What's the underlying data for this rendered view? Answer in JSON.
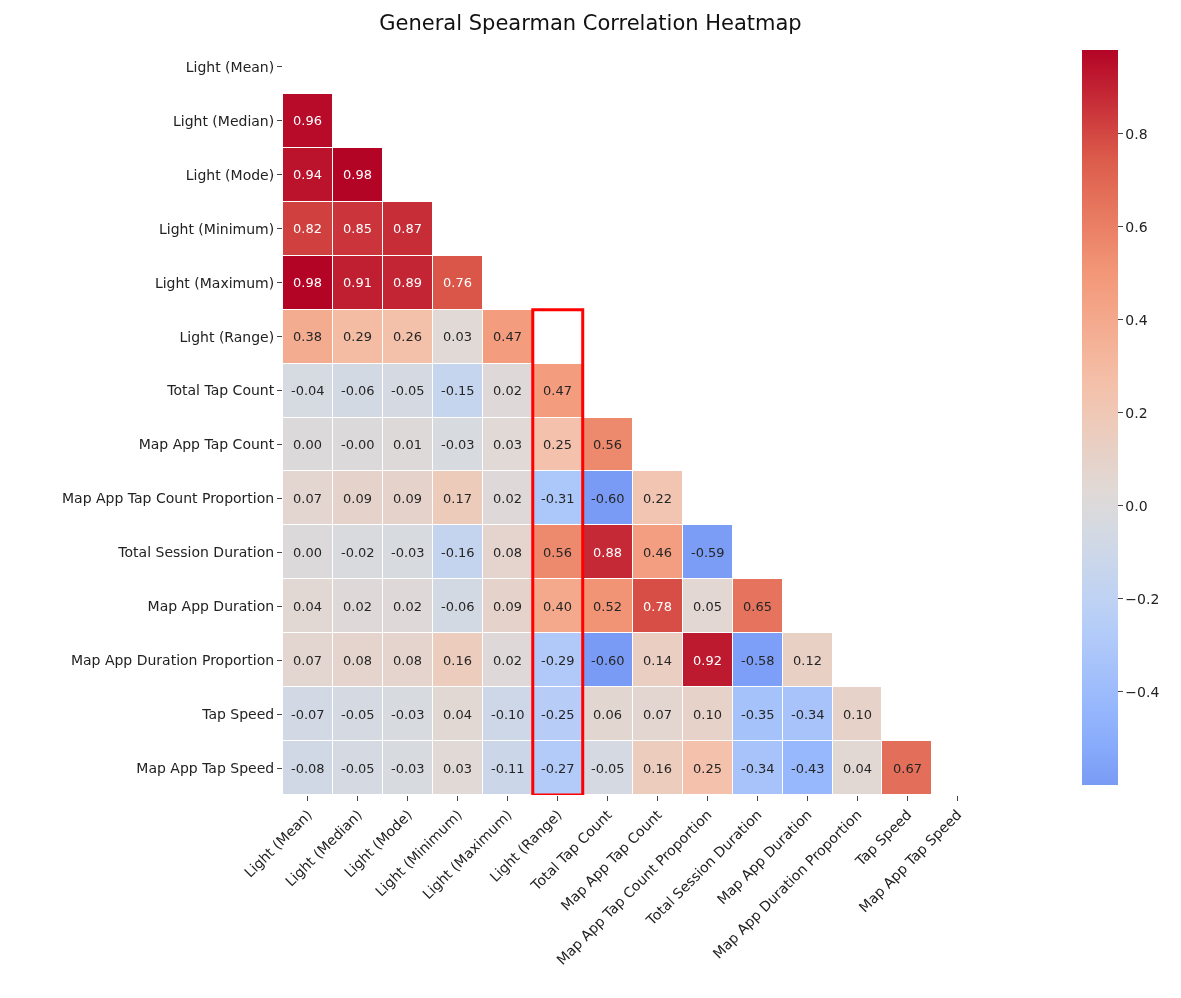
{
  "chart_data": {
    "type": "heatmap",
    "title": "General Spearman Correlation Heatmap",
    "categories": [
      "Light (Mean)",
      "Light (Median)",
      "Light (Mode)",
      "Light (Minimum)",
      "Light (Maximum)",
      "Light (Range)",
      "Total Tap Count",
      "Map App Tap Count",
      "Map App Tap Count Proportion",
      "Total Session Duration",
      "Map App Duration",
      "Map App Duration Proportion",
      "Tap Speed",
      "Map App Tap Speed"
    ],
    "y_categories": [
      "Light (Mean)",
      "Light (Median)",
      "Light (Mode)",
      "Light (Minimum)",
      "Light (Maximum)",
      "Light (Range)",
      "Total Tap Count",
      "Map App Tap Count",
      "Map App Tap Count Proportion",
      "Total Session Duration",
      "Map App Duration",
      "Map App Duration Proportion",
      "Tap Speed",
      "Map App Tap Speed"
    ],
    "cells": [
      [
        null,
        null,
        null,
        null,
        null,
        null,
        null,
        null,
        null,
        null,
        null,
        null,
        null,
        null
      ],
      [
        0.96,
        null,
        null,
        null,
        null,
        null,
        null,
        null,
        null,
        null,
        null,
        null,
        null,
        null
      ],
      [
        0.94,
        0.98,
        null,
        null,
        null,
        null,
        null,
        null,
        null,
        null,
        null,
        null,
        null,
        null
      ],
      [
        0.82,
        0.85,
        0.87,
        null,
        null,
        null,
        null,
        null,
        null,
        null,
        null,
        null,
        null,
        null
      ],
      [
        0.98,
        0.91,
        0.89,
        0.76,
        null,
        null,
        null,
        null,
        null,
        null,
        null,
        null,
        null,
        null
      ],
      [
        0.38,
        0.29,
        0.26,
        0.03,
        0.47,
        null,
        null,
        null,
        null,
        null,
        null,
        null,
        null,
        null
      ],
      [
        -0.04,
        -0.06,
        -0.05,
        -0.15,
        0.02,
        0.47,
        null,
        null,
        null,
        null,
        null,
        null,
        null,
        null
      ],
      [
        0.0,
        -0.0,
        0.01,
        -0.03,
        0.03,
        0.25,
        0.56,
        null,
        null,
        null,
        null,
        null,
        null,
        null
      ],
      [
        0.07,
        0.09,
        0.09,
        0.17,
        0.02,
        -0.31,
        -0.6,
        0.22,
        null,
        null,
        null,
        null,
        null,
        null
      ],
      [
        0.0,
        -0.02,
        -0.03,
        -0.16,
        0.08,
        0.56,
        0.88,
        0.46,
        -0.59,
        null,
        null,
        null,
        null,
        null
      ],
      [
        0.04,
        0.02,
        0.02,
        -0.06,
        0.09,
        0.4,
        0.52,
        0.78,
        0.05,
        0.65,
        null,
        null,
        null,
        null
      ],
      [
        0.07,
        0.08,
        0.08,
        0.16,
        0.02,
        -0.29,
        -0.6,
        0.14,
        0.92,
        -0.58,
        0.12,
        null,
        null,
        null
      ],
      [
        -0.07,
        -0.05,
        -0.03,
        0.04,
        -0.1,
        -0.25,
        0.06,
        0.07,
        0.1,
        -0.35,
        -0.34,
        0.1,
        null,
        null
      ],
      [
        -0.08,
        -0.05,
        -0.03,
        0.03,
        -0.11,
        -0.27,
        -0.05,
        0.16,
        0.25,
        -0.34,
        -0.43,
        0.04,
        0.67,
        null
      ]
    ],
    "cell_labels": [
      [
        null,
        null,
        null,
        null,
        null,
        null,
        null,
        null,
        null,
        null,
        null,
        null,
        null,
        null
      ],
      [
        "0.96",
        null,
        null,
        null,
        null,
        null,
        null,
        null,
        null,
        null,
        null,
        null,
        null,
        null
      ],
      [
        "0.94",
        "0.98",
        null,
        null,
        null,
        null,
        null,
        null,
        null,
        null,
        null,
        null,
        null,
        null
      ],
      [
        "0.82",
        "0.85",
        "0.87",
        null,
        null,
        null,
        null,
        null,
        null,
        null,
        null,
        null,
        null,
        null
      ],
      [
        "0.98",
        "0.91",
        "0.89",
        "0.76",
        null,
        null,
        null,
        null,
        null,
        null,
        null,
        null,
        null,
        null
      ],
      [
        "0.38",
        "0.29",
        "0.26",
        "0.03",
        "0.47",
        null,
        null,
        null,
        null,
        null,
        null,
        null,
        null,
        null
      ],
      [
        "-0.04",
        "-0.06",
        "-0.05",
        "-0.15",
        "0.02",
        "0.47",
        null,
        null,
        null,
        null,
        null,
        null,
        null,
        null
      ],
      [
        "0.00",
        "-0.00",
        "0.01",
        "-0.03",
        "0.03",
        "0.25",
        "0.56",
        null,
        null,
        null,
        null,
        null,
        null,
        null
      ],
      [
        "0.07",
        "0.09",
        "0.09",
        "0.17",
        "0.02",
        "-0.31",
        "-0.60",
        "0.22",
        null,
        null,
        null,
        null,
        null,
        null
      ],
      [
        "0.00",
        "-0.02",
        "-0.03",
        "-0.16",
        "0.08",
        "0.56",
        "0.88",
        "0.46",
        "-0.59",
        null,
        null,
        null,
        null,
        null
      ],
      [
        "0.04",
        "0.02",
        "0.02",
        "-0.06",
        "0.09",
        "0.40",
        "0.52",
        "0.78",
        "0.05",
        "0.65",
        null,
        null,
        null,
        null
      ],
      [
        "0.07",
        "0.08",
        "0.08",
        "0.16",
        "0.02",
        "-0.29",
        "-0.60",
        "0.14",
        "0.92",
        "-0.58",
        "0.12",
        null,
        null,
        null
      ],
      [
        "-0.07",
        "-0.05",
        "-0.03",
        "0.04",
        "-0.10",
        "-0.25",
        "0.06",
        "0.07",
        "0.10",
        "-0.35",
        "-0.34",
        "0.10",
        null,
        null
      ],
      [
        "-0.08",
        "-0.05",
        "-0.03",
        "0.03",
        "-0.11",
        "-0.27",
        "-0.05",
        "0.16",
        "0.25",
        "-0.34",
        "-0.43",
        "0.04",
        "0.67",
        null
      ]
    ],
    "clim": [
      -0.6,
      0.98
    ],
    "cticks": [
      {
        "value": -0.4,
        "label": "−0.4"
      },
      {
        "value": -0.2,
        "label": "−0.2"
      },
      {
        "value": 0.0,
        "label": "0.0"
      },
      {
        "value": 0.2,
        "label": "0.2"
      },
      {
        "value": 0.4,
        "label": "0.4"
      },
      {
        "value": 0.6,
        "label": "0.6"
      },
      {
        "value": 0.8,
        "label": "0.8"
      }
    ]
  }
}
